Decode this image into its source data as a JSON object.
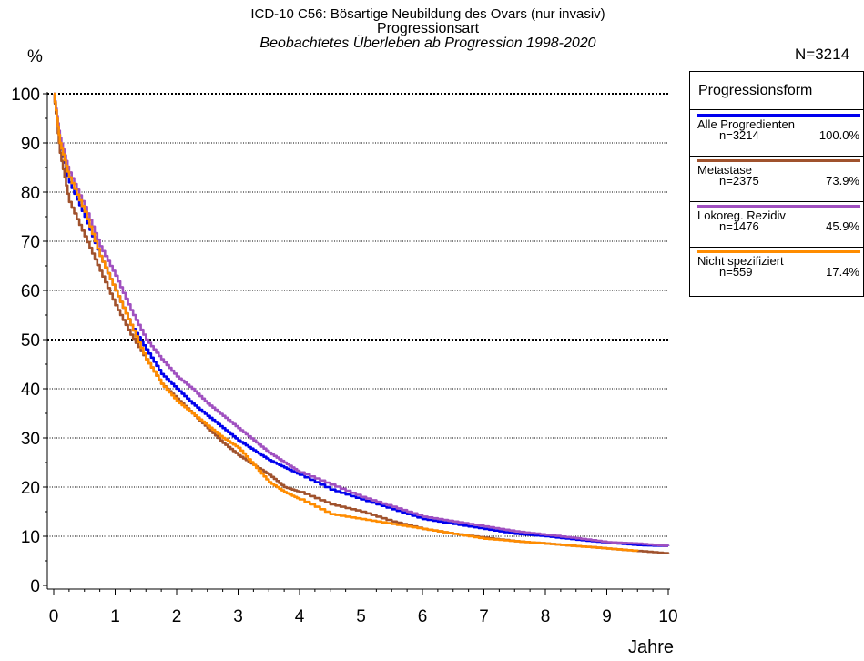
{
  "chart_data": {
    "type": "line",
    "title": "ICD-10 C56: Bösartige Neubildung des Ovars (nur invasiv)",
    "subtitle": "Progressionsart",
    "subtitle2": "Beobachtetes Überleben ab Progression 1998-2020",
    "n_total": "N=3214",
    "ylabel": "%",
    "xlabel": "Jahre",
    "xlim": [
      0,
      10
    ],
    "ylim": [
      0,
      100
    ],
    "xticks": [
      0,
      1,
      2,
      3,
      4,
      5,
      6,
      7,
      8,
      9,
      10
    ],
    "yticks": [
      0,
      10,
      20,
      30,
      40,
      50,
      60,
      70,
      80,
      90,
      100
    ],
    "gridlines": [
      10,
      20,
      30,
      40,
      60,
      70,
      80,
      90
    ],
    "dotted_bold": [
      50,
      100
    ],
    "legend_title": "Progressionsform",
    "series": [
      {
        "name": "Alle Progredienten",
        "n": "n=3214",
        "pct": "100.0%",
        "color": "#0000ee",
        "points": [
          [
            0,
            100
          ],
          [
            0.1,
            90
          ],
          [
            0.25,
            82
          ],
          [
            0.5,
            75
          ],
          [
            0.75,
            67
          ],
          [
            1,
            60
          ],
          [
            1.25,
            53
          ],
          [
            1.5,
            48
          ],
          [
            1.75,
            43
          ],
          [
            2,
            40
          ],
          [
            2.25,
            37
          ],
          [
            2.5,
            34.5
          ],
          [
            2.75,
            32
          ],
          [
            3,
            29.5
          ],
          [
            3.25,
            27.5
          ],
          [
            3.5,
            25.5
          ],
          [
            3.75,
            24
          ],
          [
            4,
            22.5
          ],
          [
            4.5,
            19.5
          ],
          [
            5,
            17.5
          ],
          [
            5.5,
            15.5
          ],
          [
            6,
            13.5
          ],
          [
            6.5,
            12.5
          ],
          [
            7,
            11.5
          ],
          [
            7.5,
            10.5
          ],
          [
            8,
            10
          ],
          [
            8.5,
            9.3
          ],
          [
            9,
            8.7
          ],
          [
            9.5,
            8.2
          ],
          [
            10,
            8
          ]
        ]
      },
      {
        "name": "Metastase",
        "n": "n=2375",
        "pct": "73.9%",
        "color": "#a0522d",
        "points": [
          [
            0,
            100
          ],
          [
            0.1,
            88
          ],
          [
            0.25,
            78
          ],
          [
            0.5,
            71
          ],
          [
            0.75,
            64
          ],
          [
            1,
            57
          ],
          [
            1.25,
            51
          ],
          [
            1.5,
            46
          ],
          [
            1.75,
            41
          ],
          [
            2,
            38
          ],
          [
            2.25,
            35
          ],
          [
            2.5,
            32
          ],
          [
            2.75,
            29
          ],
          [
            3,
            26.5
          ],
          [
            3.25,
            24.5
          ],
          [
            3.5,
            22.5
          ],
          [
            3.75,
            20
          ],
          [
            4,
            19
          ],
          [
            4.5,
            16.5
          ],
          [
            5,
            15
          ],
          [
            5.5,
            13
          ],
          [
            6,
            11.5
          ],
          [
            6.5,
            10.5
          ],
          [
            7,
            9.7
          ],
          [
            7.5,
            9
          ],
          [
            8,
            8.5
          ],
          [
            8.5,
            8
          ],
          [
            9,
            7.5
          ],
          [
            9.5,
            7
          ],
          [
            10,
            6.5
          ]
        ]
      },
      {
        "name": "Lokoreg. Rezidiv",
        "n": "n=1476",
        "pct": "45.9%",
        "color": "#a050c0",
        "points": [
          [
            0,
            100
          ],
          [
            0.1,
            91
          ],
          [
            0.25,
            84
          ],
          [
            0.5,
            77
          ],
          [
            0.75,
            69
          ],
          [
            1,
            63
          ],
          [
            1.25,
            56
          ],
          [
            1.5,
            50
          ],
          [
            1.75,
            46
          ],
          [
            2,
            42.5
          ],
          [
            2.25,
            40
          ],
          [
            2.5,
            37
          ],
          [
            2.75,
            34.5
          ],
          [
            3,
            32
          ],
          [
            3.25,
            29.5
          ],
          [
            3.5,
            27
          ],
          [
            3.75,
            25
          ],
          [
            4,
            23
          ],
          [
            4.5,
            20.5
          ],
          [
            5,
            18
          ],
          [
            5.5,
            16
          ],
          [
            6,
            14
          ],
          [
            6.5,
            13
          ],
          [
            7,
            12
          ],
          [
            7.5,
            11
          ],
          [
            8,
            10.3
          ],
          [
            8.5,
            9.6
          ],
          [
            9,
            8.8
          ],
          [
            9.5,
            8.5
          ],
          [
            10,
            8
          ]
        ]
      },
      {
        "name": "Nicht spezifiziert",
        "n": "n=559",
        "pct": "17.4%",
        "color": "#ff8c00",
        "points": [
          [
            0,
            100
          ],
          [
            0.1,
            90
          ],
          [
            0.25,
            83
          ],
          [
            0.5,
            76
          ],
          [
            0.75,
            67
          ],
          [
            1,
            60
          ],
          [
            1.25,
            53
          ],
          [
            1.5,
            46
          ],
          [
            1.75,
            41
          ],
          [
            2,
            37.5
          ],
          [
            2.25,
            35
          ],
          [
            2.5,
            32.5
          ],
          [
            2.75,
            30
          ],
          [
            3,
            28
          ],
          [
            3.25,
            24.5
          ],
          [
            3.5,
            21
          ],
          [
            3.75,
            19
          ],
          [
            4,
            17.5
          ],
          [
            4.5,
            14.5
          ],
          [
            5,
            13.5
          ],
          [
            5.5,
            12.5
          ],
          [
            6,
            11.5
          ],
          [
            6.5,
            10.5
          ],
          [
            7,
            9.5
          ],
          [
            7.5,
            9
          ],
          [
            8,
            8.5
          ],
          [
            8.5,
            8
          ],
          [
            9,
            7.5
          ],
          [
            9.5,
            7
          ]
        ]
      }
    ]
  }
}
